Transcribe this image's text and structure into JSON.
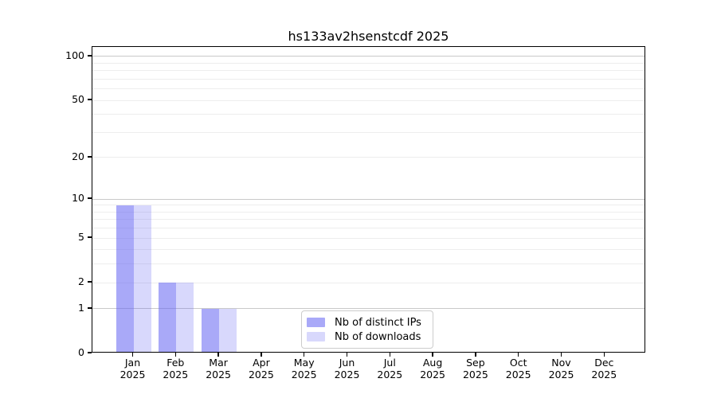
{
  "title": "hs133av2hsenstcdf 2025",
  "chart_data": {
    "type": "bar",
    "title": "hs133av2hsenstcdf 2025",
    "categories": [
      "Jan",
      "Feb",
      "Mar",
      "Apr",
      "May",
      "Jun",
      "Jul",
      "Aug",
      "Sep",
      "Oct",
      "Nov",
      "Dec"
    ],
    "xtick_line2": "2025",
    "series": [
      {
        "name": "Nb of distinct IPs",
        "color": "rgba(99,99,242,0.55)",
        "values": [
          9,
          2,
          1,
          0,
          0,
          0,
          0,
          0,
          0,
          0,
          0,
          0
        ]
      },
      {
        "name": "Nb of downloads",
        "color": "rgba(99,99,242,0.25)",
        "values": [
          9,
          2,
          1,
          0,
          0,
          0,
          0,
          0,
          0,
          0,
          0,
          0
        ]
      }
    ],
    "yscale": "log10(1+v)",
    "y_max_value": 116,
    "ylim": [
      0,
      116
    ],
    "yticks": [
      100,
      50,
      20,
      10,
      5,
      2,
      1,
      0
    ],
    "gridlines_major": [
      1,
      10,
      100
    ],
    "gridlines_minor": [
      2,
      3,
      4,
      5,
      6,
      7,
      8,
      9,
      20,
      30,
      40,
      50,
      60,
      70,
      80,
      90
    ],
    "grid": "on",
    "legend_position": "lower center",
    "colors": {
      "distinct_ips_bar": "#a9a9f5",
      "downloads_bar": "#d8d8fa",
      "grid_minor": "#ededed",
      "grid_major": "#c9c9c9",
      "axis": "#000000"
    }
  },
  "legend": {
    "items": [
      {
        "label": "Nb of distinct IPs"
      },
      {
        "label": "Nb of downloads"
      }
    ]
  }
}
